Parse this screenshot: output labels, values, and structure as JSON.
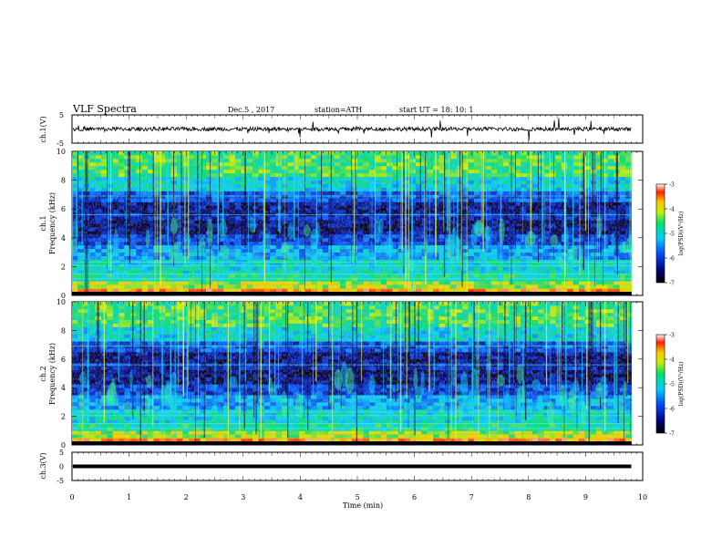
{
  "header": {
    "title": "VLF  Spectra",
    "date": "Dec.5  , 2017",
    "station": "station=ATH",
    "start": "start  UT  =    18: 10: 1"
  },
  "chart_data": [
    {
      "type": "line",
      "panel": "ch1_waveform",
      "ylabel": "ch.1(V)",
      "ylim": [
        -5,
        5
      ],
      "yticks": [
        "5",
        "-5"
      ],
      "xlim": [
        0,
        10
      ],
      "baseline_value": 0
    },
    {
      "type": "heatmap",
      "panel": "ch1_spectrogram",
      "ylabel": "ch.1\nFrequency (kHz)",
      "ylim": [
        0,
        10
      ],
      "yticks": [
        "0",
        "2",
        "4",
        "6",
        "8",
        "10"
      ],
      "xlim": [
        0,
        10
      ],
      "data_extent_min": 9.8,
      "colorbar": {
        "label": "log(PSD)(V²/Hz)",
        "range": [
          -7,
          -3
        ],
        "ticks": [
          "-3",
          "-4",
          "-5",
          "-6",
          "-7"
        ]
      }
    },
    {
      "type": "heatmap",
      "panel": "ch2_spectrogram",
      "ylabel": "ch.2\nFrequency (kHz)",
      "ylim": [
        0,
        10
      ],
      "yticks": [
        "0",
        "2",
        "4",
        "6",
        "8",
        "10"
      ],
      "xlim": [
        0,
        10
      ],
      "data_extent_min": 9.8,
      "colorbar": {
        "label": "log(PSD)(V²/Hz)",
        "range": [
          -7,
          -3
        ],
        "ticks": [
          "-3",
          "-4",
          "-5",
          "-6",
          "-7"
        ]
      }
    },
    {
      "type": "line",
      "panel": "ch3_waveform",
      "ylabel": "ch.3(V)",
      "ylim": [
        -5,
        5
      ],
      "yticks": [
        "5",
        "0",
        "-5"
      ],
      "xlim": [
        0,
        10
      ],
      "baseline_value": 0
    }
  ],
  "xaxis": {
    "label": "Time  (min)",
    "ticks": [
      "0",
      "1",
      "2",
      "3",
      "4",
      "5",
      "6",
      "7",
      "8",
      "9",
      "10"
    ]
  },
  "colors": {
    "spectrum_low": "#00007a",
    "spectrum_mid": "#00b4ff",
    "spectrum_high": "#ffe600",
    "spectrum_peak": "#cc0000"
  }
}
